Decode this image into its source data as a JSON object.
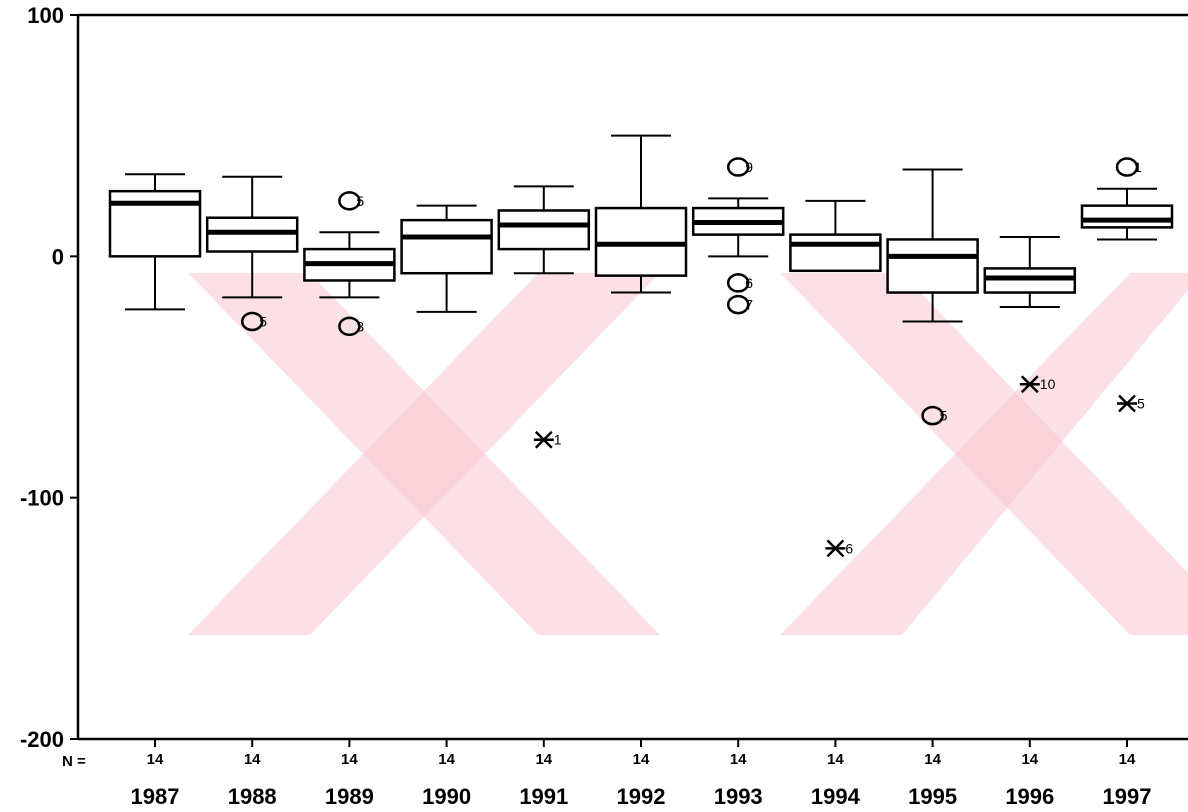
{
  "chart_data": {
    "type": "box",
    "title": "",
    "xlabel": "",
    "ylabel": "",
    "ylim": [
      -200,
      100
    ],
    "yticks": [
      "100",
      "0",
      "-100",
      "-200"
    ],
    "n_label": "N =",
    "categories": [
      "1987",
      "1988",
      "1989",
      "1990",
      "1991",
      "1992",
      "1993",
      "1994",
      "1995",
      "1996",
      "1997"
    ],
    "n": [
      "14",
      "14",
      "14",
      "14",
      "14",
      "14",
      "14",
      "14",
      "14",
      "14",
      "14"
    ],
    "boxes": [
      {
        "min": -22,
        "q1": 0,
        "median": 22,
        "q3": 27,
        "max": 34
      },
      {
        "min": -17,
        "q1": 2,
        "median": 10,
        "q3": 16,
        "max": 33
      },
      {
        "min": -17,
        "q1": -10,
        "median": -3,
        "q3": 3,
        "max": 10
      },
      {
        "min": -23,
        "q1": -7,
        "median": 8,
        "q3": 15,
        "max": 21
      },
      {
        "min": -7,
        "q1": 3,
        "median": 13,
        "q3": 19,
        "max": 29
      },
      {
        "min": -15,
        "q1": -8,
        "median": 5,
        "q3": 20,
        "max": 50
      },
      {
        "min": 0,
        "q1": 9,
        "median": 14,
        "q3": 20,
        "max": 24
      },
      {
        "min": -6,
        "q1": -6,
        "median": 5,
        "q3": 9,
        "max": 23
      },
      {
        "min": -27,
        "q1": -15,
        "median": 0,
        "q3": 7,
        "max": 36
      },
      {
        "min": -21,
        "q1": -15,
        "median": -9,
        "q3": -5,
        "max": 8
      },
      {
        "min": 7,
        "q1": 12,
        "median": 15,
        "q3": 21,
        "max": 28
      }
    ],
    "outliers": [
      {
        "category": "1988",
        "value": -27,
        "label": "5",
        "marker": "circle"
      },
      {
        "category": "1989",
        "value": 23,
        "label": "5",
        "marker": "circle"
      },
      {
        "category": "1989",
        "value": -29,
        "label": "3",
        "marker": "circle"
      },
      {
        "category": "1991",
        "value": -76,
        "label": "1",
        "marker": "star"
      },
      {
        "category": "1993",
        "value": 37,
        "label": "9",
        "marker": "circle"
      },
      {
        "category": "1993",
        "value": -11,
        "label": "6",
        "marker": "circle"
      },
      {
        "category": "1993",
        "value": -20,
        "label": "7",
        "marker": "circle"
      },
      {
        "category": "1994",
        "value": -121,
        "label": "6",
        "marker": "star"
      },
      {
        "category": "1995",
        "value": -66,
        "label": "5",
        "marker": "circle"
      },
      {
        "category": "1996",
        "value": -53,
        "label": "10",
        "marker": "star"
      },
      {
        "category": "1997",
        "value": 37,
        "label": "1",
        "marker": "circle"
      },
      {
        "category": "1997",
        "value": -61,
        "label": "5",
        "marker": "star"
      }
    ],
    "grid": false,
    "legend": "none"
  }
}
